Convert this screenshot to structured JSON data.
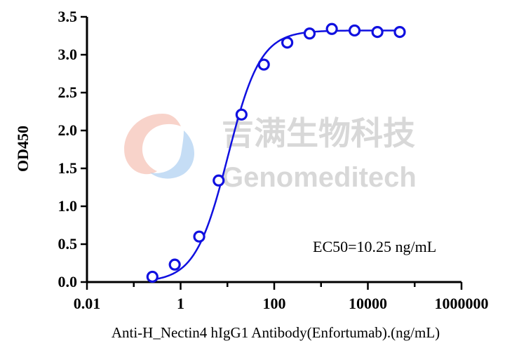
{
  "watermark": {
    "chinese": "吉满生物科技",
    "english": "Genomeditech"
  },
  "chart_data": {
    "type": "scatter",
    "title": "",
    "xlabel": "Anti-H_Nectin4 hIgG1 Antibody(Enfortumab).(ng/mL)",
    "ylabel": "OD450",
    "x_scale": "log",
    "xlim": [
      0.01,
      1000000
    ],
    "ylim": [
      0,
      3.5
    ],
    "x_ticks": [
      0.01,
      1,
      100,
      10000,
      1000000
    ],
    "x_tick_labels": [
      "0.01",
      "1",
      "100",
      "10000",
      "1000000"
    ],
    "y_ticks": [
      0.0,
      0.5,
      1.0,
      1.5,
      2.0,
      2.5,
      3.0,
      3.5
    ],
    "y_tick_labels": [
      "0.0",
      "0.5",
      "1.0",
      "1.5",
      "2.0",
      "2.5",
      "3.0",
      "3.5"
    ],
    "grid": false,
    "series": [
      {
        "color": "#1010e0",
        "x": [
          0.25,
          0.75,
          2.5,
          6.5,
          20,
          60,
          190,
          570,
          1700,
          5200,
          16000,
          48000
        ],
        "y": [
          0.07,
          0.23,
          0.6,
          1.34,
          2.21,
          2.87,
          3.16,
          3.28,
          3.34,
          3.32,
          3.3,
          3.3
        ]
      }
    ],
    "fit": {
      "model": "4PL",
      "bottom": 0.0,
      "top": 3.32,
      "ec50": 10.25,
      "hill": 1.25
    },
    "annotation": "EC50=10.25 ng/mL"
  }
}
